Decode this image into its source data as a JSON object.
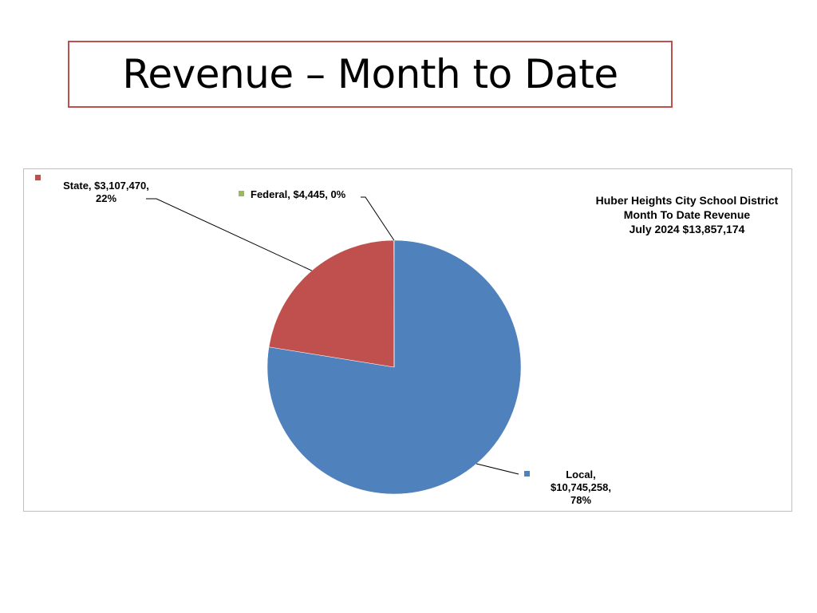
{
  "slide": {
    "title": "Revenue – Month to Date"
  },
  "chart_data": {
    "type": "pie",
    "title_lines": [
      "Huber Heights City School District",
      "Month To Date Revenue",
      "July 2024 $13,857,174"
    ],
    "slices": [
      {
        "label": "Local",
        "value": 10745258,
        "percent": 78,
        "color": "#4f81bd",
        "text_line1": "Local,",
        "text_line2": "$10,745,258,",
        "text_line3": "78%"
      },
      {
        "label": "State",
        "value": 3107470,
        "percent": 22,
        "color": "#c0504d",
        "text_line1": "State, $3,107,470,",
        "text_line2": "22%"
      },
      {
        "label": "Federal",
        "value": 4445,
        "percent": 0,
        "color": "#9bbb59",
        "text_line1": "Federal, $4,445, 0%"
      }
    ]
  }
}
